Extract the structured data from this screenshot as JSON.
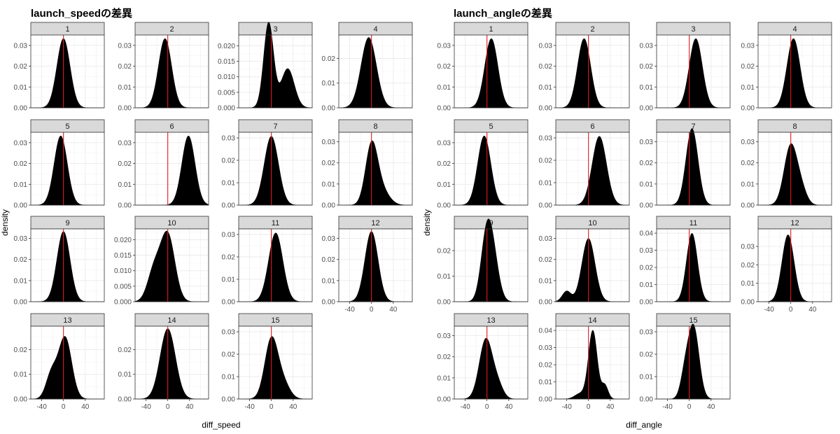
{
  "chart_data": [
    {
      "type": "area",
      "subtype": "faceted-density",
      "title": "launch_speedの差異",
      "xlabel": "diff_speed",
      "ylabel": "density",
      "reference_line": {
        "x": 0,
        "color": "#e41a1c"
      },
      "xlim": [
        -60,
        75
      ],
      "xticks": [
        -40,
        0,
        40
      ],
      "fill_color": "#000000",
      "strip_color": "#d9d9d9",
      "grid": true,
      "panels": [
        {
          "label": "1",
          "components": [
            {
              "w": 1,
              "mu": 0,
              "sd": 12
            }
          ],
          "ylim": [
            0,
            0.035
          ],
          "yticks": [
            0,
            0.01,
            0.02,
            0.03
          ],
          "ytick_labels": [
            "0.00",
            "0.01",
            "0.02",
            "0.03"
          ]
        },
        {
          "label": "2",
          "components": [
            {
              "w": 1,
              "mu": -5,
              "sd": 12
            }
          ],
          "ylim": [
            0,
            0.035
          ],
          "yticks": [
            0,
            0.01,
            0.02,
            0.03
          ],
          "ytick_labels": [
            "0.00",
            "0.01",
            "0.02",
            "0.03"
          ]
        },
        {
          "label": "3",
          "components": [
            {
              "w": 0.62,
              "mu": -5,
              "sd": 9
            },
            {
              "w": 0.38,
              "mu": 30,
              "sd": 12
            }
          ],
          "ylim": [
            0,
            0.0235
          ],
          "yticks": [
            0,
            0.005,
            0.01,
            0.015,
            0.02
          ],
          "ytick_labels": [
            "0.000",
            "0.005",
            "0.010",
            "0.015",
            "0.020"
          ]
        },
        {
          "label": "4",
          "components": [
            {
              "w": 1,
              "mu": -5,
              "sd": 14
            }
          ],
          "ylim": [
            0,
            0.0295
          ],
          "yticks": [
            0,
            0.01,
            0.02
          ],
          "ytick_labels": [
            "0.00",
            "0.01",
            "0.02"
          ]
        },
        {
          "label": "5",
          "components": [
            {
              "w": 1,
              "mu": -5,
              "sd": 12
            }
          ],
          "ylim": [
            0,
            0.035
          ],
          "yticks": [
            0,
            0.01,
            0.02,
            0.03
          ],
          "ytick_labels": [
            "0.00",
            "0.01",
            "0.02",
            "0.03"
          ]
        },
        {
          "label": "6",
          "components": [
            {
              "w": 1,
              "mu": 38,
              "sd": 12
            }
          ],
          "ylim": [
            0,
            0.035
          ],
          "yticks": [
            0,
            0.01,
            0.02,
            0.03
          ],
          "ytick_labels": [
            "0.00",
            "0.01",
            "0.02",
            "0.03"
          ]
        },
        {
          "label": "7",
          "components": [
            {
              "w": 1,
              "mu": 0,
              "sd": 13
            }
          ],
          "ylim": [
            0,
            0.0325
          ],
          "yticks": [
            0,
            0.01,
            0.02,
            0.03
          ],
          "ytick_labels": [
            "0.00",
            "0.01",
            "0.02",
            "0.03"
          ]
        },
        {
          "label": "8",
          "components": [
            {
              "w": 0.75,
              "mu": 0,
              "sd": 11
            },
            {
              "w": 0.25,
              "mu": 18,
              "sd": 14
            }
          ],
          "ylim": [
            0,
            0.0345
          ],
          "yticks": [
            0,
            0.01,
            0.02,
            0.03
          ],
          "ytick_labels": [
            "0.00",
            "0.01",
            "0.02",
            "0.03"
          ]
        },
        {
          "label": "9",
          "components": [
            {
              "w": 1,
              "mu": 0,
              "sd": 12
            }
          ],
          "ylim": [
            0,
            0.0345
          ],
          "yticks": [
            0,
            0.01,
            0.02,
            0.03
          ],
          "ytick_labels": [
            "0.00",
            "0.01",
            "0.02",
            "0.03"
          ]
        },
        {
          "label": "10",
          "components": [
            {
              "w": 0.3,
              "mu": -25,
              "sd": 12
            },
            {
              "w": 0.7,
              "mu": 0,
              "sd": 13
            }
          ],
          "ylim": [
            0,
            0.0235
          ],
          "yticks": [
            0,
            0.005,
            0.01,
            0.015,
            0.02
          ],
          "ytick_labels": [
            "0.000",
            "0.005",
            "0.010",
            "0.015",
            "0.020"
          ]
        },
        {
          "label": "11",
          "components": [
            {
              "w": 1,
              "mu": 8,
              "sd": 13
            }
          ],
          "ylim": [
            0,
            0.0325
          ],
          "yticks": [
            0,
            0.01,
            0.02,
            0.03
          ],
          "ytick_labels": [
            "0.00",
            "0.01",
            "0.02",
            "0.03"
          ]
        },
        {
          "label": "12",
          "components": [
            {
              "w": 1,
              "mu": 0,
              "sd": 12
            }
          ],
          "ylim": [
            0,
            0.0345
          ],
          "yticks": [
            0,
            0.01,
            0.02,
            0.03
          ],
          "ytick_labels": [
            "0.00",
            "0.01",
            "0.02",
            "0.03"
          ]
        },
        {
          "label": "13",
          "components": [
            {
              "w": 0.25,
              "mu": -22,
              "sd": 10
            },
            {
              "w": 0.75,
              "mu": 3,
              "sd": 12
            }
          ],
          "ylim": [
            0,
            0.0295
          ],
          "yticks": [
            0,
            0.01,
            0.02
          ],
          "ytick_labels": [
            "0.00",
            "0.01",
            "0.02"
          ]
        },
        {
          "label": "14",
          "components": [
            {
              "w": 1,
              "mu": 0,
              "sd": 14
            }
          ],
          "ylim": [
            0,
            0.0295
          ],
          "yticks": [
            0,
            0.01,
            0.02
          ],
          "ytick_labels": [
            "0.00",
            "0.01",
            "0.02"
          ]
        },
        {
          "label": "15",
          "components": [
            {
              "w": 0.8,
              "mu": 0,
              "sd": 12
            },
            {
              "w": 0.2,
              "mu": 22,
              "sd": 12
            }
          ],
          "ylim": [
            0,
            0.0325
          ],
          "yticks": [
            0,
            0.01,
            0.02,
            0.03
          ],
          "ytick_labels": [
            "0.00",
            "0.01",
            "0.02",
            "0.03"
          ]
        }
      ]
    },
    {
      "type": "area",
      "subtype": "faceted-density",
      "title": "launch_angleの差異",
      "xlabel": "diff_angle",
      "ylabel": "density",
      "reference_line": {
        "x": 0,
        "color": "#e41a1c"
      },
      "xlim": [
        -60,
        75
      ],
      "xticks": [
        -40,
        0,
        40
      ],
      "fill_color": "#000000",
      "strip_color": "#d9d9d9",
      "grid": true,
      "panels": [
        {
          "label": "1",
          "components": [
            {
              "w": 1,
              "mu": 8,
              "sd": 12
            }
          ],
          "ylim": [
            0,
            0.035
          ],
          "yticks": [
            0,
            0.01,
            0.02,
            0.03
          ],
          "ytick_labels": [
            "0.00",
            "0.01",
            "0.02",
            "0.03"
          ]
        },
        {
          "label": "2",
          "components": [
            {
              "w": 1,
              "mu": -8,
              "sd": 12
            }
          ],
          "ylim": [
            0,
            0.035
          ],
          "yticks": [
            0,
            0.01,
            0.02,
            0.03
          ],
          "ytick_labels": [
            "0.00",
            "0.01",
            "0.02",
            "0.03"
          ]
        },
        {
          "label": "3",
          "components": [
            {
              "w": 1,
              "mu": 12,
              "sd": 12
            }
          ],
          "ylim": [
            0,
            0.035
          ],
          "yticks": [
            0,
            0.01,
            0.02,
            0.03
          ],
          "ytick_labels": [
            "0.00",
            "0.01",
            "0.02",
            "0.03"
          ]
        },
        {
          "label": "4",
          "components": [
            {
              "w": 1,
              "mu": 5,
              "sd": 12
            }
          ],
          "ylim": [
            0,
            0.035
          ],
          "yticks": [
            0,
            0.01,
            0.02,
            0.03
          ],
          "ytick_labels": [
            "0.00",
            "0.01",
            "0.02",
            "0.03"
          ]
        },
        {
          "label": "5",
          "components": [
            {
              "w": 1,
              "mu": -5,
              "sd": 12
            }
          ],
          "ylim": [
            0,
            0.035
          ],
          "yticks": [
            0,
            0.01,
            0.02,
            0.03
          ],
          "ytick_labels": [
            "0.00",
            "0.01",
            "0.02",
            "0.03"
          ]
        },
        {
          "label": "6",
          "components": [
            {
              "w": 1,
              "mu": 20,
              "sd": 13
            }
          ],
          "ylim": [
            0,
            0.0325
          ],
          "yticks": [
            0,
            0.01,
            0.02,
            0.03
          ],
          "ytick_labels": [
            "0.00",
            "0.01",
            "0.02",
            "0.03"
          ]
        },
        {
          "label": "7",
          "components": [
            {
              "w": 1,
              "mu": 5,
              "sd": 11
            }
          ],
          "ylim": [
            0,
            0.0345
          ],
          "yticks": [
            0,
            0.01,
            0.02,
            0.03
          ],
          "ytick_labels": [
            "0.00",
            "0.01",
            "0.02",
            "0.03"
          ]
        },
        {
          "label": "8",
          "components": [
            {
              "w": 0.85,
              "mu": 0,
              "sd": 12
            },
            {
              "w": 0.15,
              "mu": 20,
              "sd": 10
            }
          ],
          "ylim": [
            0,
            0.0345
          ],
          "yticks": [
            0,
            0.01,
            0.02,
            0.03
          ],
          "ytick_labels": [
            "0.00",
            "0.01",
            "0.02",
            "0.03"
          ]
        },
        {
          "label": "9",
          "components": [
            {
              "w": 0.5,
              "mu": -2,
              "sd": 10
            },
            {
              "w": 0.5,
              "mu": 10,
              "sd": 11
            }
          ],
          "ylim": [
            0,
            0.0285
          ],
          "yticks": [
            0,
            0.01,
            0.02
          ],
          "ytick_labels": [
            "0.00",
            "0.01",
            "0.02"
          ]
        },
        {
          "label": "10",
          "components": [
            {
              "w": 0.9,
              "mu": 0,
              "sd": 12
            },
            {
              "w": 0.1,
              "mu": -40,
              "sd": 8
            }
          ],
          "ylim": [
            0,
            0.0345
          ],
          "yticks": [
            0,
            0.01,
            0.02,
            0.03
          ],
          "ytick_labels": [
            "0.00",
            "0.01",
            "0.02",
            "0.03"
          ]
        },
        {
          "label": "11",
          "components": [
            {
              "w": 1,
              "mu": 5,
              "sd": 10
            }
          ],
          "ylim": [
            0,
            0.0425
          ],
          "yticks": [
            0,
            0.01,
            0.02,
            0.03,
            0.04
          ],
          "ytick_labels": [
            "0.00",
            "0.01",
            "0.02",
            "0.03",
            "0.04"
          ]
        },
        {
          "label": "12",
          "components": [
            {
              "w": 1,
              "mu": -5,
              "sd": 11
            }
          ],
          "ylim": [
            0,
            0.0395
          ],
          "yticks": [
            0,
            0.01,
            0.02,
            0.03
          ],
          "ytick_labels": [
            "0.00",
            "0.01",
            "0.02",
            "0.03"
          ]
        },
        {
          "label": "13",
          "components": [
            {
              "w": 0.85,
              "mu": -2,
              "sd": 12
            },
            {
              "w": 0.15,
              "mu": 20,
              "sd": 10
            }
          ],
          "ylim": [
            0,
            0.0345
          ],
          "yticks": [
            0,
            0.01,
            0.02,
            0.03
          ],
          "ytick_labels": [
            "0.00",
            "0.01",
            "0.02",
            "0.03"
          ]
        },
        {
          "label": "14",
          "components": [
            {
              "w": 0.8,
              "mu": 8,
              "sd": 8
            },
            {
              "w": 0.12,
              "mu": 30,
              "sd": 6
            },
            {
              "w": 0.08,
              "mu": -15,
              "sd": 10
            }
          ],
          "ylim": [
            0,
            0.0425
          ],
          "yticks": [
            0,
            0.01,
            0.02,
            0.03,
            0.04
          ],
          "ytick_labels": [
            "0.00",
            "0.01",
            "0.02",
            "0.03",
            "0.04"
          ]
        },
        {
          "label": "15",
          "components": [
            {
              "w": 0.8,
              "mu": 8,
              "sd": 10
            },
            {
              "w": 0.2,
              "mu": -8,
              "sd": 8
            }
          ],
          "ylim": [
            0,
            0.0325
          ],
          "yticks": [
            0,
            0.01,
            0.02,
            0.03
          ],
          "ytick_labels": [
            "0.00",
            "0.01",
            "0.02",
            "0.03"
          ]
        }
      ]
    }
  ]
}
